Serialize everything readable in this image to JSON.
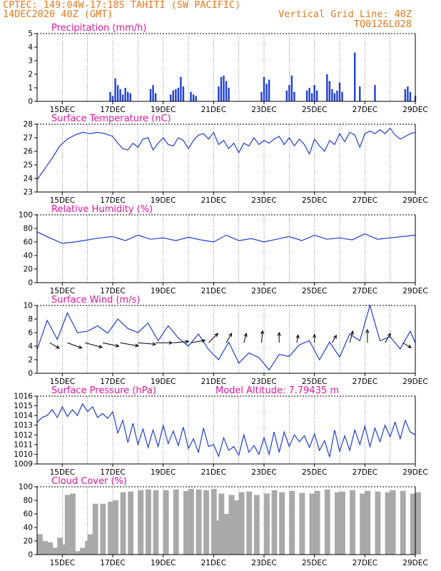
{
  "header": {
    "line1": "CPTEC:   149:04W-17:18S  TAHITI (SW PACIFIC)",
    "line2": "14DEC2020 40Z (GMT)",
    "grid_note": "Vertical Grid Line: 40Z",
    "product_code": "TQ0126L028"
  },
  "colors": {
    "header": "#e8781e",
    "title": "#e0169b",
    "series": "#1f3fd6",
    "cloud": "#a9a9a9",
    "wind_arrow": "#000000"
  },
  "chart_data": [
    {
      "type": "bar",
      "title": "Precipitation (mm/h)",
      "ylim": [
        0,
        5
      ],
      "yticks": [
        "0",
        "1",
        "2",
        "3",
        "4",
        "5"
      ],
      "xticks": [
        "15DEC",
        "17DEC",
        "19DEC",
        "21DEC",
        "23DEC",
        "25DEC",
        "27DEC",
        "29DEC"
      ],
      "x_unit": "day of December 2020 (UTC)",
      "x": [
        16.9,
        17.0,
        17.1,
        17.2,
        17.3,
        17.4,
        17.5,
        17.6,
        17.7,
        18.5,
        18.6,
        18.7,
        19.3,
        19.4,
        19.5,
        19.6,
        19.7,
        19.8,
        20.1,
        20.2,
        20.3,
        21.2,
        21.3,
        21.4,
        21.5,
        21.6,
        22.9,
        23.0,
        23.1,
        23.2,
        23.9,
        24.0,
        24.1,
        24.2,
        24.7,
        24.8,
        24.9,
        25.0,
        25.1,
        25.5,
        25.6,
        25.7,
        25.8,
        25.9,
        26.0,
        26.1,
        26.6,
        26.8,
        27.4,
        28.6,
        28.7,
        28.8,
        29.0
      ],
      "values": [
        0.7,
        0.4,
        1.7,
        1.2,
        0.9,
        0.5,
        1.0,
        0.7,
        0.6,
        0.9,
        1.2,
        0.6,
        0.5,
        0.8,
        0.9,
        1.0,
        1.8,
        1.1,
        0.7,
        0.5,
        0.4,
        1.1,
        1.8,
        1.9,
        1.5,
        1.0,
        0.7,
        1.8,
        1.3,
        1.6,
        0.8,
        1.2,
        1.9,
        0.7,
        0.8,
        1.0,
        0.6,
        1.2,
        0.8,
        2.0,
        1.5,
        0.9,
        0.6,
        0.8,
        1.4,
        0.7,
        3.6,
        1.1,
        1.2,
        0.9,
        1.1,
        0.7,
        0.4
      ]
    },
    {
      "type": "line",
      "title": "Surface Temperature (nC)",
      "ylim": [
        23,
        28
      ],
      "yticks": [
        "23",
        "24",
        "25",
        "26",
        "27",
        "28"
      ],
      "xticks": [
        "15DEC",
        "17DEC",
        "19DEC",
        "21DEC",
        "23DEC",
        "25DEC",
        "27DEC",
        "29DEC"
      ],
      "x_unit": "day of December 2020 (UTC)",
      "x": [
        14.0,
        14.3,
        14.6,
        14.9,
        15.2,
        15.5,
        15.8,
        16.1,
        16.4,
        16.7,
        17.0,
        17.2,
        17.4,
        17.6,
        17.8,
        18.0,
        18.2,
        18.4,
        18.6,
        18.8,
        19.0,
        19.2,
        19.4,
        19.6,
        19.8,
        20.0,
        20.2,
        20.4,
        20.6,
        20.8,
        21.0,
        21.2,
        21.4,
        21.6,
        21.8,
        22.0,
        22.2,
        22.4,
        22.6,
        22.8,
        23.0,
        23.2,
        23.4,
        23.6,
        23.8,
        24.0,
        24.2,
        24.4,
        24.6,
        24.8,
        25.0,
        25.2,
        25.4,
        25.6,
        25.8,
        26.0,
        26.2,
        26.4,
        26.6,
        26.8,
        27.0,
        27.2,
        27.4,
        27.6,
        27.8,
        28.0,
        28.2,
        28.4,
        28.6,
        28.8,
        29.0
      ],
      "values": [
        23.9,
        24.7,
        25.5,
        26.4,
        26.9,
        27.2,
        27.4,
        27.3,
        27.4,
        27.3,
        27.1,
        26.6,
        26.2,
        26.1,
        26.6,
        26.3,
        26.9,
        27.0,
        26.1,
        26.6,
        27.0,
        26.5,
        26.4,
        27.0,
        26.8,
        26.2,
        26.8,
        27.2,
        27.3,
        26.9,
        27.4,
        26.5,
        26.8,
        26.2,
        26.6,
        25.9,
        26.6,
        26.4,
        27.0,
        26.5,
        26.8,
        26.6,
        26.9,
        27.1,
        26.5,
        27.0,
        26.4,
        26.9,
        26.5,
        25.8,
        26.9,
        26.4,
        26.0,
        26.8,
        26.5,
        27.3,
        26.7,
        27.4,
        27.2,
        26.3,
        27.3,
        27.5,
        27.3,
        27.6,
        27.3,
        27.7,
        27.2,
        26.9,
        27.1,
        27.3,
        27.4
      ]
    },
    {
      "type": "line",
      "title": "Relative Humidity (%)",
      "ylim": [
        0,
        100
      ],
      "yticks": [
        "0",
        "20",
        "40",
        "60",
        "80",
        "100"
      ],
      "xticks": [
        "15DEC",
        "17DEC",
        "19DEC",
        "21DEC",
        "23DEC",
        "25DEC",
        "27DEC",
        "29DEC"
      ],
      "x_unit": "day of December 2020 (UTC)",
      "x": [
        14.0,
        14.5,
        15.0,
        15.5,
        16.0,
        16.5,
        17.0,
        17.5,
        18.0,
        18.5,
        19.0,
        19.5,
        20.0,
        20.5,
        21.0,
        21.5,
        22.0,
        22.5,
        23.0,
        23.5,
        24.0,
        24.5,
        25.0,
        25.5,
        26.0,
        26.5,
        27.0,
        27.5,
        28.0,
        28.5,
        29.0
      ],
      "values": [
        75,
        66,
        58,
        60,
        63,
        66,
        68,
        62,
        70,
        64,
        66,
        62,
        67,
        63,
        60,
        70,
        62,
        65,
        60,
        64,
        68,
        62,
        70,
        64,
        66,
        63,
        72,
        64,
        66,
        68,
        70
      ]
    },
    {
      "type": "line",
      "title": "Surface Wind (m/s)",
      "ylim": [
        0,
        10
      ],
      "yticks": [
        "0",
        "2",
        "4",
        "6",
        "8",
        "10"
      ],
      "xticks": [
        "15DEC",
        "17DEC",
        "19DEC",
        "21DEC",
        "23DEC",
        "25DEC",
        "27DEC",
        "29DEC"
      ],
      "x_unit": "day of December 2020 (UTC)",
      "x": [
        14.0,
        14.4,
        14.8,
        15.2,
        15.6,
        16.0,
        16.4,
        16.8,
        17.2,
        17.6,
        18.0,
        18.4,
        18.8,
        19.2,
        19.6,
        20.0,
        20.4,
        20.8,
        21.2,
        21.6,
        22.0,
        22.4,
        22.8,
        23.2,
        23.6,
        24.0,
        24.4,
        24.8,
        25.2,
        25.6,
        26.0,
        26.4,
        26.8,
        27.2,
        27.6,
        28.0,
        28.4,
        28.8,
        29.0
      ],
      "values": [
        3.5,
        7.8,
        5.0,
        8.9,
        6.0,
        6.2,
        7.0,
        5.9,
        8.0,
        6.6,
        6.0,
        7.4,
        4.8,
        7.0,
        5.2,
        4.0,
        5.8,
        3.5,
        2.0,
        4.6,
        1.5,
        3.0,
        2.3,
        0.5,
        2.8,
        2.5,
        4.2,
        4.8,
        2.0,
        4.6,
        2.4,
        5.8,
        4.8,
        10.0,
        4.8,
        5.4,
        3.6,
        6.2,
        4.5
      ],
      "wind_speed": [
        3.5,
        5.5,
        6.5,
        6.0,
        6.8,
        6.5,
        6.0,
        5.5,
        5.0,
        4.5,
        3.5,
        3.0,
        4.0,
        3.2,
        2.2,
        2.4,
        2.5,
        4.0,
        4.5,
        3.5,
        3.0
      ],
      "wind_dir_deg": [
        60,
        70,
        75,
        78,
        80,
        85,
        90,
        95,
        100,
        135,
        150,
        165,
        175,
        180,
        170,
        180,
        150,
        165,
        180,
        150,
        60
      ]
    },
    {
      "type": "line",
      "title": "Surface Pressure (hPa)",
      "annotation": "Model Altitude: 7.79435 m",
      "ylim": [
        1009,
        1016
      ],
      "yticks": [
        "1009",
        "1010",
        "1011",
        "1012",
        "1013",
        "1014",
        "1015",
        "1016"
      ],
      "xticks": [
        "15DEC",
        "17DEC",
        "19DEC",
        "21DEC",
        "23DEC",
        "25DEC",
        "27DEC",
        "29DEC"
      ],
      "x_unit": "day of December 2020 (UTC)",
      "x": [
        14.0,
        14.2,
        14.4,
        14.6,
        14.8,
        15.0,
        15.2,
        15.4,
        15.6,
        15.8,
        16.0,
        16.2,
        16.4,
        16.6,
        16.8,
        17.0,
        17.2,
        17.4,
        17.6,
        17.8,
        18.0,
        18.2,
        18.4,
        18.6,
        18.8,
        19.0,
        19.2,
        19.4,
        19.6,
        19.8,
        20.0,
        20.2,
        20.4,
        20.6,
        20.8,
        21.0,
        21.2,
        21.4,
        21.6,
        21.8,
        22.0,
        22.2,
        22.4,
        22.6,
        22.8,
        23.0,
        23.2,
        23.4,
        23.6,
        23.8,
        24.0,
        24.2,
        24.4,
        24.6,
        24.8,
        25.0,
        25.2,
        25.4,
        25.6,
        25.8,
        26.0,
        26.2,
        26.4,
        26.6,
        26.8,
        27.0,
        27.2,
        27.4,
        27.6,
        27.8,
        28.0,
        28.2,
        28.4,
        28.6,
        28.8,
        29.0
      ],
      "values": [
        1013.3,
        1013.8,
        1014.0,
        1014.6,
        1013.8,
        1014.9,
        1013.9,
        1014.6,
        1014.0,
        1015.2,
        1014.4,
        1014.9,
        1013.8,
        1014.2,
        1013.7,
        1014.4,
        1012.2,
        1013.5,
        1011.2,
        1013.2,
        1011.0,
        1012.6,
        1010.7,
        1012.5,
        1010.8,
        1013.0,
        1011.1,
        1012.4,
        1010.9,
        1012.8,
        1010.6,
        1011.6,
        1010.2,
        1012.7,
        1010.8,
        1011.0,
        1009.8,
        1011.7,
        1010.4,
        1010.8,
        1009.9,
        1012.0,
        1010.2,
        1010.9,
        1010.0,
        1011.7,
        1010.0,
        1012.3,
        1010.2,
        1012.3,
        1010.8,
        1012.0,
        1011.3,
        1011.9,
        1010.7,
        1012.1,
        1010.4,
        1011.4,
        1009.7,
        1012.5,
        1010.3,
        1011.9,
        1010.4,
        1012.5,
        1011.0,
        1012.9,
        1010.8,
        1012.7,
        1011.3,
        1013.0,
        1011.8,
        1013.3,
        1011.6,
        1013.5,
        1012.3,
        1012.0
      ]
    },
    {
      "type": "area",
      "title": "Cloud Cover (%)",
      "ylim": [
        0,
        100
      ],
      "yticks": [
        "0",
        "20",
        "40",
        "60",
        "80",
        "100"
      ],
      "xticks": [
        "15DEC",
        "17DEC",
        "19DEC",
        "21DEC",
        "23DEC",
        "25DEC",
        "27DEC",
        "29DEC"
      ],
      "x_unit": "day of December 2020 (UTC)",
      "x": [
        14.0,
        14.2,
        14.4,
        14.6,
        14.8,
        15.0,
        15.1,
        15.2,
        15.3,
        15.5,
        15.7,
        15.9,
        16.0,
        16.2,
        16.5,
        16.8,
        17.0,
        17.3,
        17.6,
        18.0,
        18.3,
        18.6,
        19.0,
        19.4,
        19.8,
        20.0,
        20.3,
        20.6,
        20.9,
        21.0,
        21.2,
        21.4,
        21.6,
        21.8,
        22.0,
        22.3,
        22.6,
        23.0,
        23.3,
        23.6,
        24.0,
        24.4,
        24.8,
        25.0,
        25.4,
        25.8,
        26.0,
        26.4,
        26.8,
        27.0,
        27.4,
        27.8,
        28.0,
        28.4,
        28.8,
        29.0
      ],
      "values": [
        30,
        20,
        18,
        10,
        25,
        15,
        88,
        70,
        90,
        5,
        10,
        20,
        30,
        75,
        75,
        78,
        80,
        92,
        93,
        95,
        96,
        95,
        95,
        96,
        94,
        97,
        96,
        95,
        97,
        50,
        90,
        60,
        88,
        80,
        92,
        93,
        88,
        90,
        95,
        92,
        94,
        91,
        90,
        94,
        96,
        92,
        93,
        95,
        90,
        94,
        93,
        92,
        95,
        94,
        90,
        92
      ]
    }
  ]
}
